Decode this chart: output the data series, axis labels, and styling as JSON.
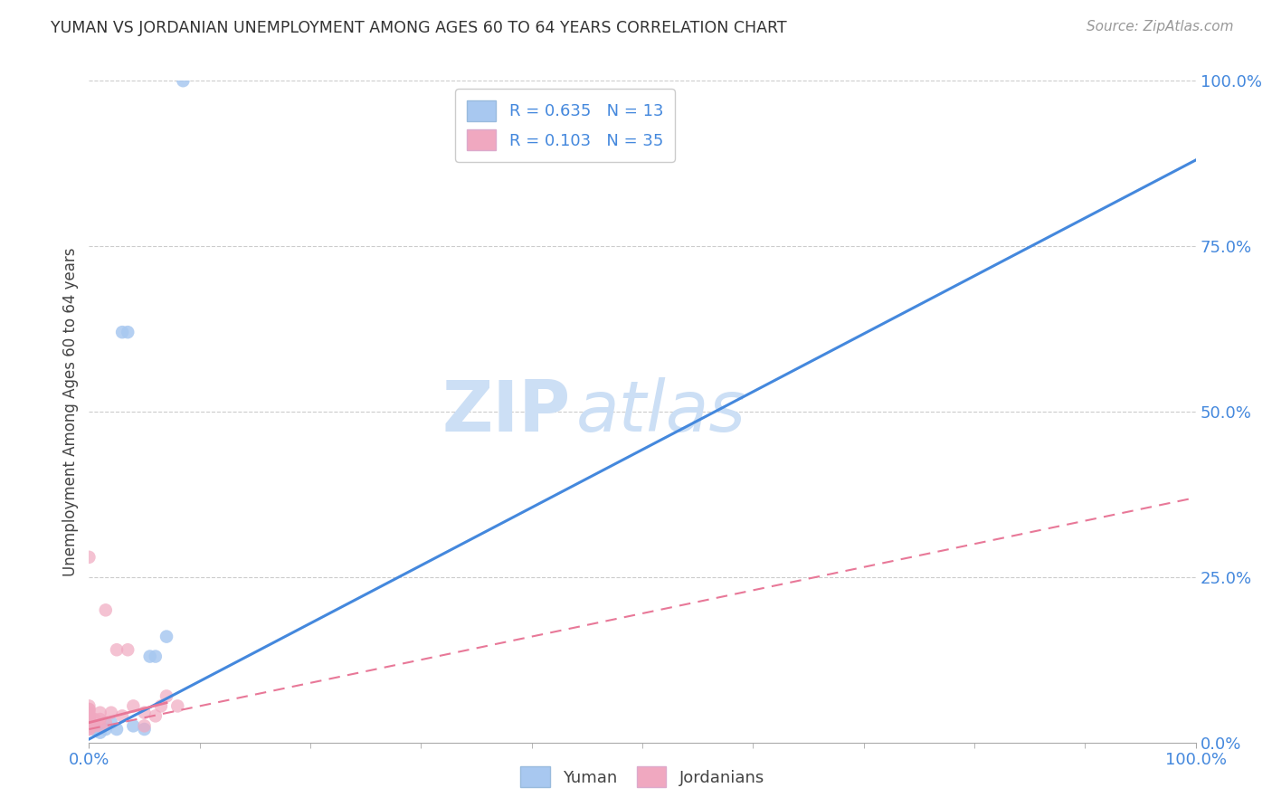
{
  "title": "YUMAN VS JORDANIAN UNEMPLOYMENT AMONG AGES 60 TO 64 YEARS CORRELATION CHART",
  "source": "Source: ZipAtlas.com",
  "ylabel": "Unemployment Among Ages 60 to 64 years",
  "legend_r_yuman": "R = 0.635",
  "legend_n_yuman": "N = 13",
  "legend_r_jordan": "R = 0.103",
  "legend_n_jordan": "N = 35",
  "legend_label_yuman": "Yuman",
  "legend_label_jordan": "Jordanians",
  "color_yuman": "#a8c8f0",
  "color_jordan": "#f0a8c0",
  "color_blue_line": "#4488dd",
  "color_pink_line": "#e87898",
  "color_blue_text": "#4488dd",
  "watermark_zip": "ZIP",
  "watermark_atlas": "atlas",
  "watermark_color": "#ccdff5",
  "yuman_scatter_x": [
    0.005,
    0.01,
    0.015,
    0.02,
    0.025,
    0.03,
    0.035,
    0.04,
    0.05,
    0.055,
    0.06,
    0.07,
    0.085
  ],
  "yuman_scatter_y": [
    0.02,
    0.015,
    0.02,
    0.03,
    0.02,
    0.62,
    0.62,
    0.025,
    0.02,
    0.13,
    0.13,
    0.16,
    1.0
  ],
  "jordan_scatter_x": [
    0.0,
    0.0,
    0.0,
    0.0,
    0.0,
    0.0,
    0.0,
    0.0,
    0.0,
    0.0,
    0.0,
    0.0,
    0.0,
    0.0,
    0.0,
    0.0,
    0.0,
    0.005,
    0.005,
    0.01,
    0.01,
    0.01,
    0.015,
    0.015,
    0.02,
    0.025,
    0.03,
    0.035,
    0.04,
    0.05,
    0.05,
    0.06,
    0.065,
    0.07,
    0.08
  ],
  "jordan_scatter_y": [
    0.02,
    0.02,
    0.025,
    0.025,
    0.03,
    0.03,
    0.03,
    0.035,
    0.035,
    0.04,
    0.04,
    0.04,
    0.045,
    0.05,
    0.05,
    0.055,
    0.28,
    0.025,
    0.035,
    0.025,
    0.035,
    0.045,
    0.03,
    0.2,
    0.045,
    0.14,
    0.04,
    0.14,
    0.055,
    0.025,
    0.045,
    0.04,
    0.055,
    0.07,
    0.055
  ],
  "yuman_line_x": [
    0.0,
    1.0
  ],
  "yuman_line_y": [
    0.005,
    0.88
  ],
  "jordan_line_x": [
    0.0,
    1.0
  ],
  "jordan_line_y": [
    0.02,
    0.37
  ],
  "jordan_solid_line_x": [
    0.0,
    0.07
  ],
  "jordan_solid_line_y": [
    0.03,
    0.06
  ],
  "xlim": [
    0.0,
    1.0
  ],
  "ylim": [
    0.0,
    1.0
  ],
  "bg_color": "#ffffff",
  "grid_color": "#cccccc"
}
